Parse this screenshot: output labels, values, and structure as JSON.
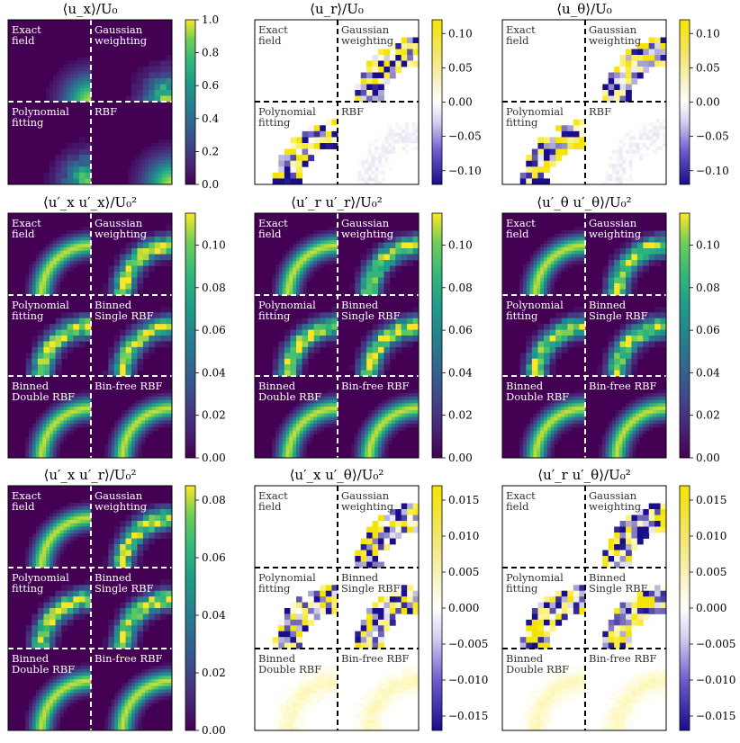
{
  "chart_data": {
    "type": "heatmap",
    "panels": [
      {
        "title": "⟨u_x⟩/U₀",
        "colormap": "viridis",
        "vmin": 0,
        "vmax": 1.0,
        "ticks": [
          "0.0",
          "0.2",
          "0.4",
          "0.6",
          "0.8",
          "1.0"
        ],
        "tick_values": [
          0,
          0.2,
          0.4,
          0.6,
          0.8,
          1.0
        ],
        "quadrants": [
          "Exact field",
          "Gaussian weighting",
          "Polynomial fitting",
          "RBF"
        ]
      },
      {
        "title": "⟨u_r⟩/U₀",
        "colormap": "diverging",
        "vmin": -0.12,
        "vmax": 0.12,
        "ticks": [
          "−0.10",
          "−0.05",
          "0.00",
          "0.05",
          "0.10"
        ],
        "tick_values": [
          -0.1,
          -0.05,
          0,
          0.05,
          0.1
        ],
        "quadrants": [
          "Exact field",
          "Gaussian weighting",
          "Polynomial fitting",
          "RBF"
        ]
      },
      {
        "title": "⟨u_θ⟩/U₀",
        "colormap": "diverging",
        "vmin": -0.12,
        "vmax": 0.12,
        "ticks": [
          "−0.10",
          "−0.05",
          "0.00",
          "0.05",
          "0.10"
        ],
        "tick_values": [
          -0.1,
          -0.05,
          0,
          0.05,
          0.1
        ],
        "quadrants": [
          "Exact field",
          "Gaussian weighting",
          "Polynomial fitting",
          "RBF"
        ]
      },
      {
        "title": "⟨u′_x u′_x⟩/U₀²",
        "colormap": "viridis",
        "vmin": 0,
        "vmax": 0.115,
        "ticks": [
          "0.00",
          "0.02",
          "0.04",
          "0.06",
          "0.08",
          "0.10"
        ],
        "tick_values": [
          0,
          0.02,
          0.04,
          0.06,
          0.08,
          0.1
        ],
        "quadrants": [
          "Exact field",
          "Gaussian weighting",
          "Polynomial fitting",
          "Binned Single RBF",
          "Binned Double RBF",
          "Bin-free RBF"
        ]
      },
      {
        "title": "⟨u′_r u′_r⟩/U₀²",
        "colormap": "viridis",
        "vmin": 0,
        "vmax": 0.115,
        "ticks": [
          "0.00",
          "0.02",
          "0.04",
          "0.06",
          "0.08",
          "0.10"
        ],
        "tick_values": [
          0,
          0.02,
          0.04,
          0.06,
          0.08,
          0.1
        ],
        "quadrants": [
          "Exact field",
          "Gaussian weighting",
          "Polynomial fitting",
          "Binned Single RBF",
          "Binned Double RBF",
          "Bin-free RBF"
        ]
      },
      {
        "title": "⟨u′_θ u′_θ⟩/U₀²",
        "colormap": "viridis",
        "vmin": 0,
        "vmax": 0.115,
        "ticks": [
          "0.00",
          "0.02",
          "0.04",
          "0.06",
          "0.08",
          "0.10"
        ],
        "tick_values": [
          0,
          0.02,
          0.04,
          0.06,
          0.08,
          0.1
        ],
        "quadrants": [
          "Exact field",
          "Gaussian weighting",
          "Polynomial fitting",
          "Binned Single RBF",
          "Binned Double RBF",
          "Bin-free RBF"
        ]
      },
      {
        "title": "⟨u′_x u′_r⟩/U₀²",
        "colormap": "viridis",
        "vmin": 0,
        "vmax": 0.085,
        "ticks": [
          "0.00",
          "0.02",
          "0.04",
          "0.06",
          "0.08"
        ],
        "tick_values": [
          0,
          0.02,
          0.04,
          0.06,
          0.08
        ],
        "quadrants": [
          "Exact field",
          "Gaussian weighting",
          "Polynomial fitting",
          "Binned Single RBF",
          "Binned Double RBF",
          "Bin-free RBF"
        ]
      },
      {
        "title": "⟨u′_x u′_θ⟩/U₀²",
        "colormap": "diverging",
        "vmin": -0.017,
        "vmax": 0.017,
        "ticks": [
          "−0.015",
          "−0.010",
          "−0.005",
          "0.000",
          "0.005",
          "0.010",
          "0.015"
        ],
        "tick_values": [
          -0.015,
          -0.01,
          -0.005,
          0,
          0.005,
          0.01,
          0.015
        ],
        "quadrants": [
          "Exact field",
          "Gaussian weighting",
          "Polynomial fitting",
          "Binned Single RBF",
          "Binned Double RBF",
          "Bin-free RBF"
        ]
      },
      {
        "title": "⟨u′_r u′_θ⟩/U₀²",
        "colormap": "diverging",
        "vmin": -0.017,
        "vmax": 0.017,
        "ticks": [
          "−0.015",
          "−0.010",
          "−0.005",
          "0.000",
          "0.005",
          "0.010",
          "0.015"
        ],
        "tick_values": [
          -0.015,
          -0.01,
          -0.005,
          0,
          0.005,
          0.01,
          0.015
        ],
        "quadrants": [
          "Exact field",
          "Gaussian weighting",
          "Polynomial fitting",
          "Binned Single RBF",
          "Binned Double RBF",
          "Bin-free RBF"
        ]
      }
    ]
  }
}
